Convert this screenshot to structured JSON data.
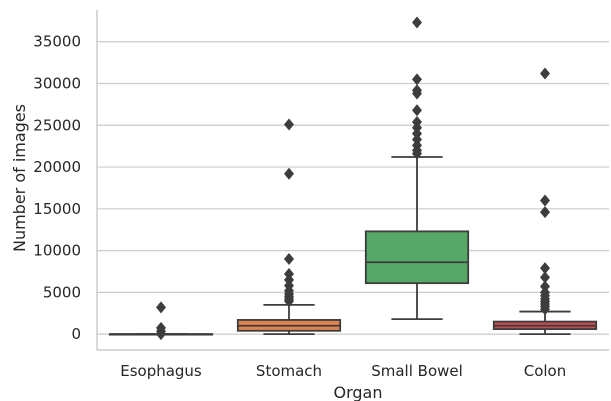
{
  "chart_data": {
    "type": "box",
    "title": "",
    "xlabel": "Organ",
    "ylabel": "Number of images",
    "categories": [
      "Esophagus",
      "Stomach",
      "Small Bowel",
      "Colon"
    ],
    "y_ticks": [
      0,
      5000,
      10000,
      15000,
      20000,
      25000,
      30000,
      35000
    ],
    "y_tick_labels": [
      "0",
      "5000",
      "10000",
      "15000",
      "20000",
      "25000",
      "30000",
      "35000"
    ],
    "ylim": [
      -1900,
      38800
    ],
    "grid": "horizontal",
    "boxes": [
      {
        "category": "Esophagus",
        "color": "#4c72b0",
        "whisker_low": 0,
        "q1": 0,
        "median": 0,
        "q3": 0,
        "whisker_high": 0,
        "outliers": [
          3200,
          750,
          350,
          0
        ]
      },
      {
        "category": "Stomach",
        "color": "#dd8452",
        "whisker_low": 0,
        "q1": 400,
        "median": 1000,
        "q3": 1700,
        "whisker_high": 3500,
        "outliers": [
          25100,
          19200,
          9000,
          7200,
          6500,
          5800,
          5200,
          4800,
          4500,
          4200,
          3950
        ]
      },
      {
        "category": "Small Bowel",
        "color": "#55a868",
        "whisker_low": 1800,
        "q1": 6100,
        "median": 8600,
        "q3": 12300,
        "whisker_high": 21200,
        "outliers": [
          37300,
          30500,
          29200,
          28800,
          26800,
          25400,
          24700,
          24000,
          23300,
          22600,
          22000,
          21600
        ]
      },
      {
        "category": "Colon",
        "color": "#c44e52",
        "whisker_low": 0,
        "q1": 600,
        "median": 1000,
        "q3": 1500,
        "whisker_high": 2700,
        "outliers": [
          31200,
          16000,
          14600,
          7900,
          6800,
          5700,
          5000,
          4600,
          4200,
          3900,
          3600,
          3300,
          3000
        ]
      }
    ]
  }
}
